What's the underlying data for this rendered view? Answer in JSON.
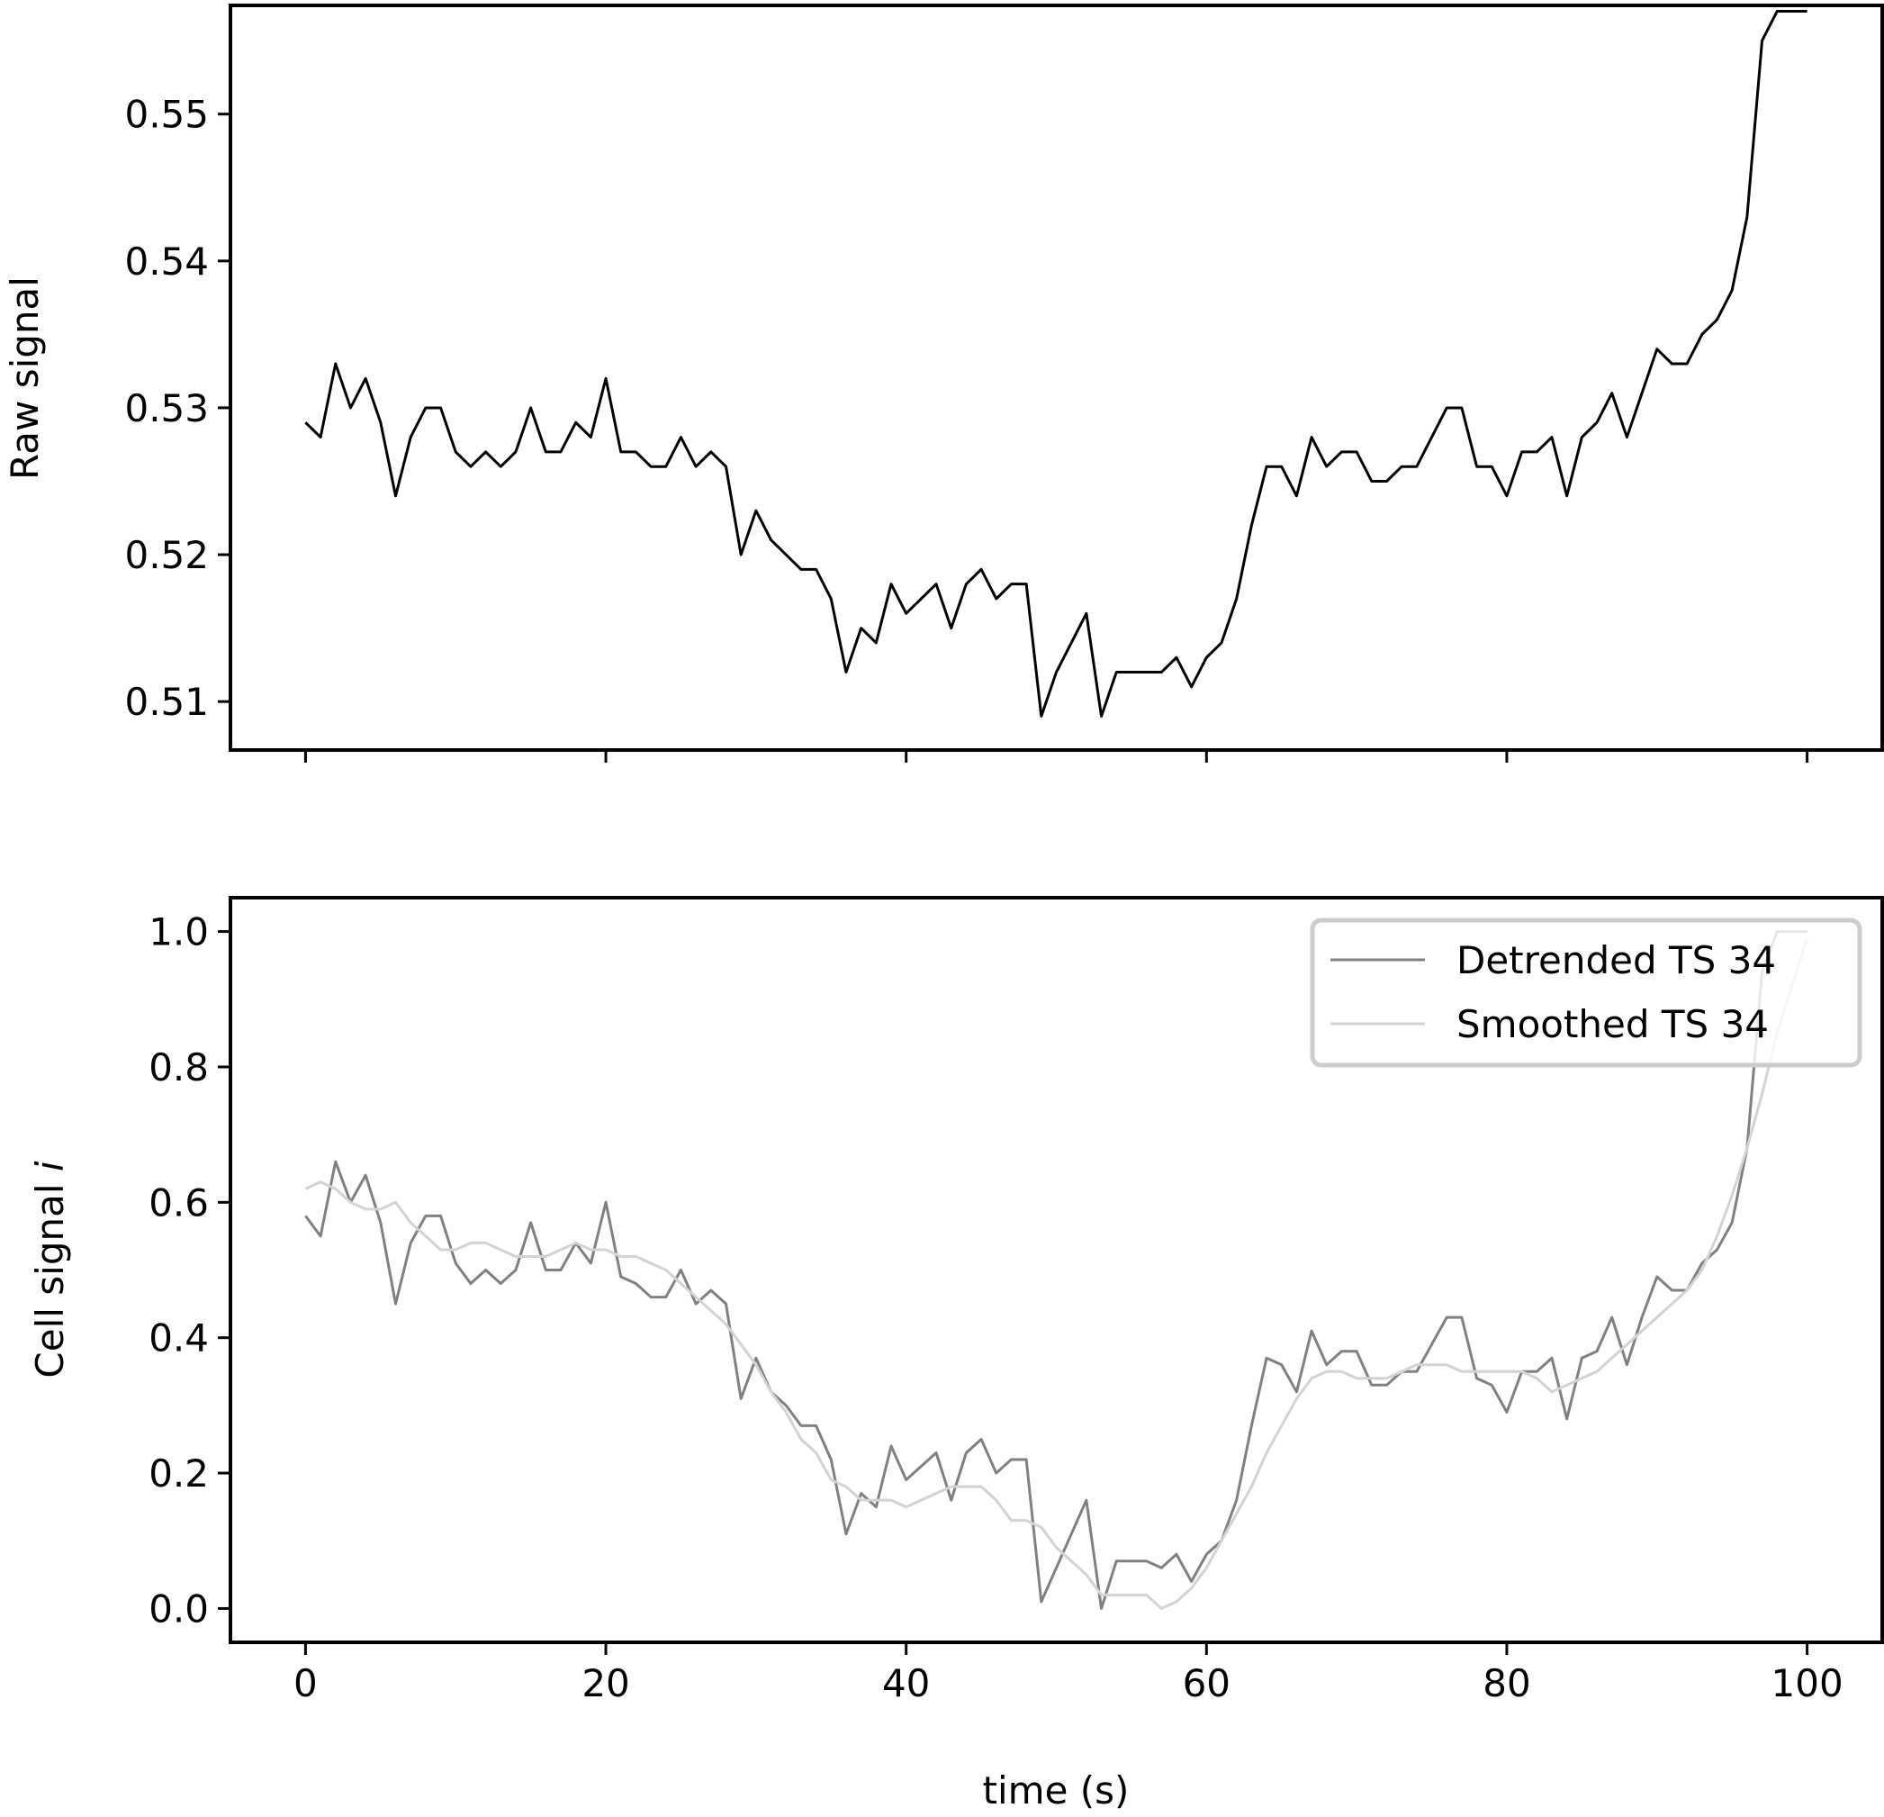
{
  "chart_data": [
    {
      "type": "line",
      "title": "",
      "xlabel": "",
      "ylabel": "Raw signal",
      "xlim": [
        -5,
        105
      ],
      "ylim": [
        0.5067,
        0.5574
      ],
      "xticks": [
        0,
        20,
        40,
        60,
        80,
        100
      ],
      "yticks": [
        0.51,
        0.52,
        0.53,
        0.54,
        0.55
      ],
      "ytick_labels": [
        "0.51",
        "0.52",
        "0.53",
        "0.54",
        "0.55"
      ],
      "show_x_tick_labels": false,
      "grid": false,
      "series": [
        {
          "color": "#000000",
          "x": [
            0,
            1,
            2,
            3,
            4,
            5,
            6,
            7,
            8,
            9,
            10,
            11,
            12,
            13,
            14,
            15,
            16,
            17,
            18,
            19,
            20,
            21,
            22,
            23,
            24,
            25,
            26,
            27,
            28,
            29,
            30,
            31,
            32,
            33,
            34,
            35,
            36,
            37,
            38,
            39,
            40,
            41,
            42,
            43,
            44,
            45,
            46,
            47,
            48,
            49,
            50,
            51,
            52,
            53,
            54,
            55,
            56,
            57,
            58,
            59,
            60,
            61,
            62,
            63,
            64,
            65,
            66,
            67,
            68,
            69,
            70,
            71,
            72,
            73,
            74,
            75,
            76,
            77,
            78,
            79,
            80,
            81,
            82,
            83,
            84,
            85,
            86,
            87,
            88,
            89,
            90,
            91,
            92,
            93,
            94,
            95,
            96,
            97,
            98,
            99,
            100
          ],
          "y": [
            0.529,
            0.528,
            0.533,
            0.53,
            0.532,
            0.529,
            0.524,
            0.528,
            0.53,
            0.53,
            0.527,
            0.526,
            0.527,
            0.526,
            0.527,
            0.53,
            0.527,
            0.527,
            0.529,
            0.528,
            0.532,
            0.527,
            0.527,
            0.526,
            0.526,
            0.528,
            0.526,
            0.527,
            0.526,
            0.52,
            0.523,
            0.521,
            0.52,
            0.519,
            0.519,
            0.517,
            0.512,
            0.515,
            0.514,
            0.518,
            0.516,
            0.517,
            0.518,
            0.515,
            0.518,
            0.519,
            0.517,
            0.518,
            0.518,
            0.509,
            0.512,
            0.514,
            0.516,
            0.509,
            0.512,
            0.512,
            0.512,
            0.512,
            0.513,
            0.511,
            0.513,
            0.514,
            0.517,
            0.522,
            0.526,
            0.526,
            0.524,
            0.528,
            0.526,
            0.527,
            0.527,
            0.525,
            0.525,
            0.526,
            0.526,
            0.528,
            0.53,
            0.53,
            0.526,
            0.526,
            0.524,
            0.527,
            0.527,
            0.528,
            0.524,
            0.528,
            0.529,
            0.531,
            0.528,
            0.531,
            0.534,
            0.533,
            0.533,
            0.535,
            0.536,
            0.538,
            0.543,
            0.555,
            0.557,
            0.557,
            0.557
          ]
        }
      ]
    },
    {
      "type": "line",
      "title": "",
      "xlabel": "time (s)",
      "ylabel": "Cell signal ",
      "ylabel_italic": "i",
      "xlim": [
        -5,
        105
      ],
      "ylim": [
        -0.05,
        1.05
      ],
      "xticks": [
        0,
        20,
        40,
        60,
        80,
        100
      ],
      "xtick_labels": [
        "0",
        "20",
        "40",
        "60",
        "80",
        "100"
      ],
      "yticks": [
        0.0,
        0.2,
        0.4,
        0.6,
        0.8,
        1.0
      ],
      "ytick_labels": [
        "0.0",
        "0.2",
        "0.4",
        "0.6",
        "0.8",
        "1.0"
      ],
      "grid": false,
      "legend_position": "top-right",
      "series": [
        {
          "name": "Detrended TS 34",
          "color": "#808080",
          "x": [
            0,
            1,
            2,
            3,
            4,
            5,
            6,
            7,
            8,
            9,
            10,
            11,
            12,
            13,
            14,
            15,
            16,
            17,
            18,
            19,
            20,
            21,
            22,
            23,
            24,
            25,
            26,
            27,
            28,
            29,
            30,
            31,
            32,
            33,
            34,
            35,
            36,
            37,
            38,
            39,
            40,
            41,
            42,
            43,
            44,
            45,
            46,
            47,
            48,
            49,
            50,
            51,
            52,
            53,
            54,
            55,
            56,
            57,
            58,
            59,
            60,
            61,
            62,
            63,
            64,
            65,
            66,
            67,
            68,
            69,
            70,
            71,
            72,
            73,
            74,
            75,
            76,
            77,
            78,
            79,
            80,
            81,
            82,
            83,
            84,
            85,
            86,
            87,
            88,
            89,
            90,
            91,
            92,
            93,
            94,
            95,
            96,
            97,
            98,
            99,
            100
          ],
          "y": [
            0.58,
            0.55,
            0.66,
            0.6,
            0.64,
            0.57,
            0.45,
            0.54,
            0.58,
            0.58,
            0.51,
            0.48,
            0.5,
            0.48,
            0.5,
            0.57,
            0.5,
            0.5,
            0.54,
            0.51,
            0.6,
            0.49,
            0.48,
            0.46,
            0.46,
            0.5,
            0.45,
            0.47,
            0.45,
            0.31,
            0.37,
            0.32,
            0.3,
            0.27,
            0.27,
            0.22,
            0.11,
            0.17,
            0.15,
            0.24,
            0.19,
            0.21,
            0.23,
            0.16,
            0.23,
            0.25,
            0.2,
            0.22,
            0.22,
            0.01,
            0.06,
            0.11,
            0.16,
            0.0,
            0.07,
            0.07,
            0.07,
            0.06,
            0.08,
            0.04,
            0.08,
            0.1,
            0.16,
            0.27,
            0.37,
            0.36,
            0.32,
            0.41,
            0.36,
            0.38,
            0.38,
            0.33,
            0.33,
            0.35,
            0.35,
            0.39,
            0.43,
            0.43,
            0.34,
            0.33,
            0.29,
            0.35,
            0.35,
            0.37,
            0.28,
            0.37,
            0.38,
            0.43,
            0.36,
            0.43,
            0.49,
            0.47,
            0.47,
            0.51,
            0.53,
            0.57,
            0.68,
            0.94,
            1.0,
            1.0,
            1.0
          ]
        },
        {
          "name": "Smoothed TS 34",
          "color": "#d3d3d3",
          "x": [
            0,
            1,
            2,
            3,
            4,
            5,
            6,
            7,
            8,
            9,
            10,
            11,
            12,
            13,
            14,
            15,
            16,
            17,
            18,
            19,
            20,
            21,
            22,
            23,
            24,
            25,
            26,
            27,
            28,
            29,
            30,
            31,
            32,
            33,
            34,
            35,
            36,
            37,
            38,
            39,
            40,
            41,
            42,
            43,
            44,
            45,
            46,
            47,
            48,
            49,
            50,
            51,
            52,
            53,
            54,
            55,
            56,
            57,
            58,
            59,
            60,
            61,
            62,
            63,
            64,
            65,
            66,
            67,
            68,
            69,
            70,
            71,
            72,
            73,
            74,
            75,
            76,
            77,
            78,
            79,
            80,
            81,
            82,
            83,
            84,
            85,
            86,
            87,
            88,
            89,
            90,
            91,
            92,
            93,
            94,
            95,
            96,
            97,
            98,
            99,
            100
          ],
          "y": [
            0.62,
            0.63,
            0.62,
            0.6,
            0.59,
            0.59,
            0.6,
            0.57,
            0.55,
            0.53,
            0.53,
            0.54,
            0.54,
            0.53,
            0.52,
            0.52,
            0.52,
            0.53,
            0.54,
            0.53,
            0.53,
            0.52,
            0.52,
            0.51,
            0.5,
            0.48,
            0.46,
            0.44,
            0.42,
            0.39,
            0.36,
            0.32,
            0.29,
            0.25,
            0.23,
            0.19,
            0.18,
            0.16,
            0.16,
            0.16,
            0.15,
            0.16,
            0.17,
            0.18,
            0.18,
            0.18,
            0.16,
            0.13,
            0.13,
            0.12,
            0.09,
            0.07,
            0.05,
            0.02,
            0.02,
            0.02,
            0.02,
            0.0,
            0.01,
            0.03,
            0.06,
            0.1,
            0.14,
            0.18,
            0.23,
            0.27,
            0.31,
            0.34,
            0.35,
            0.35,
            0.34,
            0.34,
            0.34,
            0.35,
            0.36,
            0.36,
            0.36,
            0.35,
            0.35,
            0.35,
            0.35,
            0.35,
            0.34,
            0.32,
            0.33,
            0.34,
            0.35,
            0.37,
            0.39,
            0.41,
            0.43,
            0.45,
            0.47,
            0.5,
            0.55,
            0.61,
            0.68,
            0.76,
            0.85,
            0.92,
            0.99
          ]
        }
      ]
    }
  ]
}
